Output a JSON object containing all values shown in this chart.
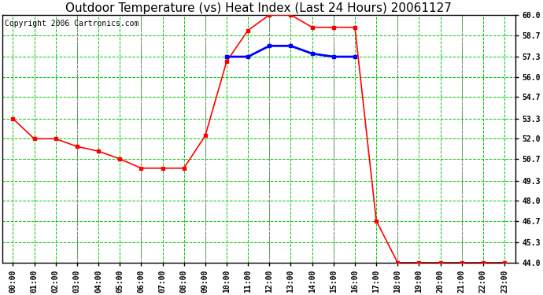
{
  "title": "Outdoor Temperature (vs) Heat Index (Last 24 Hours) 20061127",
  "copyright": "Copyright 2006 Cartronics.com",
  "background_color": "#ffffff",
  "plot_background": "#ffffff",
  "grid_color": "#00cc00",
  "grid_minor_color": "#00cc00",
  "ylim": [
    44.0,
    60.0
  ],
  "yticks": [
    44.0,
    45.3,
    46.7,
    48.0,
    49.3,
    50.7,
    52.0,
    53.3,
    54.7,
    56.0,
    57.3,
    58.7,
    60.0
  ],
  "x_labels": [
    "00:00",
    "01:00",
    "02:00",
    "03:00",
    "04:00",
    "05:00",
    "06:00",
    "07:00",
    "08:00",
    "09:00",
    "10:00",
    "11:00",
    "12:00",
    "13:00",
    "14:00",
    "15:00",
    "16:00",
    "17:00",
    "18:00",
    "19:00",
    "20:00",
    "21:00",
    "22:00",
    "23:00"
  ],
  "temp_color": "#ff0000",
  "heat_color": "#0000ff",
  "temp_data": [
    53.3,
    52.0,
    52.0,
    51.5,
    51.2,
    50.7,
    50.1,
    50.1,
    50.1,
    52.2,
    57.0,
    59.0,
    60.0,
    60.0,
    59.2,
    59.2,
    59.2,
    46.7,
    44.0,
    44.0,
    44.0,
    44.0,
    44.0,
    44.0
  ],
  "heat_data": [
    null,
    null,
    null,
    null,
    null,
    null,
    null,
    null,
    null,
    null,
    57.3,
    57.3,
    58.0,
    58.0,
    57.5,
    57.3,
    57.3,
    null,
    null,
    null,
    null,
    null,
    null,
    null
  ],
  "vlines_gray": [
    3,
    6,
    9,
    12,
    15,
    18,
    21
  ],
  "title_fontsize": 11,
  "tick_fontsize": 7,
  "copyright_fontsize": 7
}
